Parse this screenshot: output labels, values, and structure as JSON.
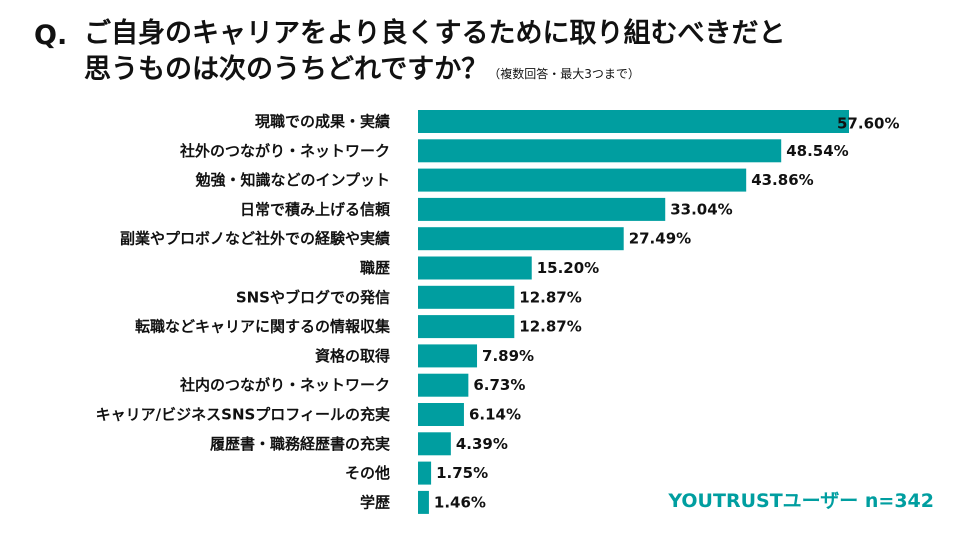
{
  "question_mark": "Q.",
  "title_line1": "ご自身のキャリアをより良くするために取り組むべきだと",
  "title_line2": "思うものは次のうちどれですか？",
  "title_note": "（複数回答・最大3つまで）",
  "footer": "YOUTRUSTユーザー n=342",
  "colors": {
    "bar": "#009ea0",
    "text": "#111111",
    "footer": "#009ea0"
  },
  "chart_data": {
    "type": "bar",
    "orientation": "horizontal",
    "categories": [
      "現職での成果・実績",
      "社外のつながり・ネットワーク",
      "勉強・知識などのインプット",
      "日常で積み上げる信頼",
      "副業やプロボノなど社外での経験や実績",
      "職歴",
      "SNSやブログでの発信",
      "転職などキャリアに関するの情報収集",
      "資格の取得",
      "社内のつながり・ネットワーク",
      "キャリア/ビジネスSNSプロフィールの充実",
      "履歴書・職務経歴書の充実",
      "その他",
      "学歴"
    ],
    "values": [
      57.6,
      48.54,
      43.86,
      33.04,
      27.49,
      15.2,
      12.87,
      12.87,
      7.89,
      6.73,
      6.14,
      4.39,
      1.75,
      1.46
    ],
    "labels": [
      "57.60%",
      "48.54%",
      "43.86%",
      "33.04%",
      "27.49%",
      "15.20%",
      "12.87%",
      "12.87%",
      "7.89%",
      "6.73%",
      "6.14%",
      "4.39%",
      "1.75%",
      "1.46%"
    ],
    "unit": "%",
    "xlim": [
      0,
      60
    ]
  }
}
